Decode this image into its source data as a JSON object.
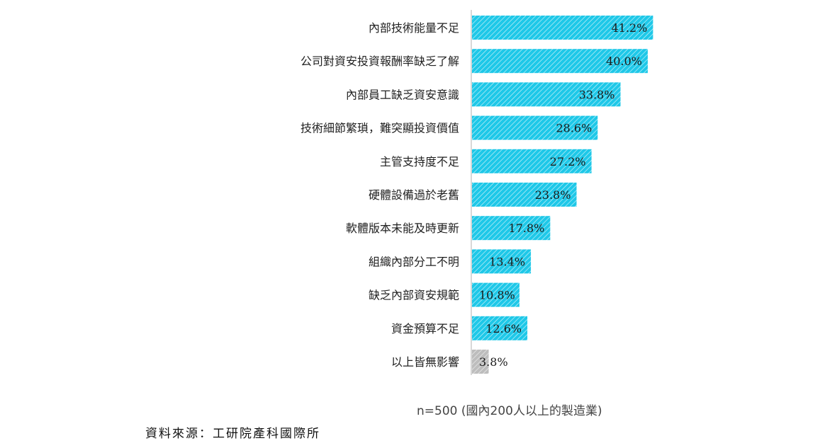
{
  "chart_data": {
    "type": "bar",
    "orientation": "horizontal",
    "categories": [
      "內部技術能量不足",
      "公司對資安投資報酬率缺乏了解",
      "內部員工缺乏資安意識",
      "技術細節繁瑣，難突顯投資價值",
      "主管支持度不足",
      "硬體設備過於老舊",
      "軟體版本未能及時更新",
      "組織內部分工不明",
      "缺乏內部資安規範",
      "資金預算不足",
      "以上皆無影響"
    ],
    "values": [
      41.2,
      40.0,
      33.8,
      28.6,
      27.2,
      23.8,
      17.8,
      13.4,
      10.8,
      12.6,
      3.8
    ],
    "value_labels": [
      "41.2%",
      "40.0%",
      "33.8%",
      "28.6%",
      "27.2%",
      "23.8%",
      "17.8%",
      "13.4%",
      "10.8%",
      "12.6%",
      "3.8%"
    ],
    "bar_colors": [
      "#1ec8e8",
      "#1ec8e8",
      "#1ec8e8",
      "#1ec8e8",
      "#1ec8e8",
      "#1ec8e8",
      "#1ec8e8",
      "#1ec8e8",
      "#1ec8e8",
      "#1ec8e8",
      "#bdbdbd"
    ],
    "bar_fill_style": "diagonal-hatch",
    "xlim": [
      0,
      50
    ],
    "grid": false,
    "legend": "none"
  },
  "note": "n=500 (國內200人以上的製造業)",
  "source": "資料來源：工研院產科國際所"
}
